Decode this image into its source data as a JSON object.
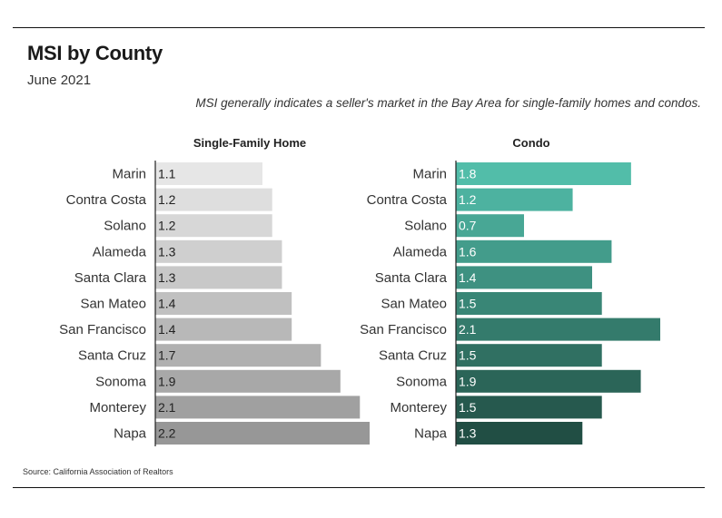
{
  "header": {
    "title": "MSI by County",
    "subtitle": "June 2021",
    "note": "MSI generally indicates a seller's market in the Bay Area for single-family homes and condos."
  },
  "footer": {
    "source": "Source:  California Association of Realtors"
  },
  "chart_data": [
    {
      "type": "bar",
      "orientation": "horizontal",
      "title": "Single-Family Home",
      "categories": [
        "Marin",
        "Contra Costa",
        "Solano",
        "Alameda",
        "Santa Clara",
        "San Mateo",
        "San Francisco",
        "Santa Cruz",
        "Sonoma",
        "Monterey",
        "Napa"
      ],
      "values": [
        1.1,
        1.2,
        1.2,
        1.3,
        1.3,
        1.4,
        1.4,
        1.7,
        1.9,
        2.1,
        2.2
      ],
      "value_labels": [
        "1.1",
        "1.2",
        "1.2",
        "1.3",
        "1.3",
        "1.4",
        "1.4",
        "1.7",
        "1.9",
        "2.1",
        "2.2"
      ],
      "xlim": [
        0,
        2.2
      ],
      "colors": [
        "#e6e6e6",
        "#dedede",
        "#d7d7d7",
        "#cfcfcf",
        "#c8c8c8",
        "#c0c0c0",
        "#b8b8b8",
        "#b0b0b0",
        "#a8a8a8",
        "#a0a0a0",
        "#979797"
      ],
      "value_label_color": "#222222"
    },
    {
      "type": "bar",
      "orientation": "horizontal",
      "title": "Condo",
      "categories": [
        "Marin",
        "Contra Costa",
        "Solano",
        "Alameda",
        "Santa Clara",
        "San Mateo",
        "San Francisco",
        "Santa Cruz",
        "Sonoma",
        "Monterey",
        "Napa"
      ],
      "values": [
        1.8,
        1.2,
        0.7,
        1.6,
        1.4,
        1.5,
        2.1,
        1.5,
        1.9,
        1.5,
        1.3
      ],
      "value_labels": [
        "1.8",
        "1.2",
        "0.7",
        "1.6",
        "1.4",
        "1.5",
        "2.1",
        "1.5",
        "1.9",
        "1.5",
        "1.3"
      ],
      "xlim": [
        0,
        2.1
      ],
      "colors": [
        "#52bda9",
        "#4db2a0",
        "#48a795",
        "#439c8b",
        "#3e9181",
        "#398676",
        "#347b6c",
        "#307062",
        "#2b6558",
        "#26594e",
        "#214e44"
      ],
      "value_label_color": "#ffffff"
    }
  ]
}
